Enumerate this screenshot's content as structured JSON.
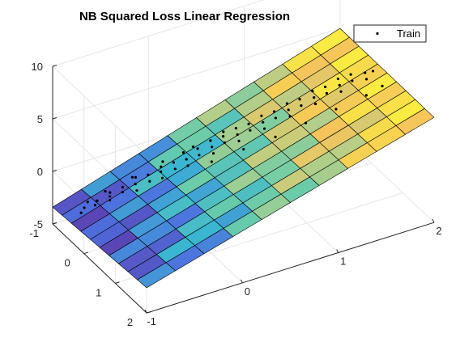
{
  "chart_data": {
    "type": "scatter3d-with-surface",
    "title": "NB Squared Loss Linear Regression",
    "xlabel": "",
    "ylabel": "",
    "zlabel": "",
    "xlim": [
      -1,
      2
    ],
    "ylim": [
      -1,
      2
    ],
    "zlim": [
      -5,
      10
    ],
    "x_ticks": [
      "-1",
      "0",
      "1",
      "2"
    ],
    "y_ticks": [
      "-1",
      "0",
      "1",
      "2"
    ],
    "z_ticks": [
      "-5",
      "0",
      "5",
      "10"
    ],
    "grid": true,
    "legend": {
      "position": "top-right",
      "entries": [
        "Train"
      ]
    },
    "surface": {
      "description": "fitted linear plane",
      "x_range": [
        -1,
        2
      ],
      "y_range": [
        -1,
        2
      ],
      "corner_z": {
        "x-1_y-1": -3.4,
        "x2_y-1": 5.0,
        "x-1_y2": -2.6,
        "x2_y2": 5.0
      },
      "colormap": [
        "#3e26a8",
        "#2f58d9",
        "#19a9c9",
        "#54c49a",
        "#b0c56f",
        "#f4bb3e",
        "#f9e821"
      ]
    },
    "series": [
      {
        "name": "Train",
        "marker": "dot",
        "color": "#000000",
        "points": [
          [
            -0.85,
            -0.55,
            -3.1
          ],
          [
            -0.8,
            -0.6,
            -2.9
          ],
          [
            -0.72,
            -0.5,
            -2.6
          ],
          [
            -0.65,
            -0.65,
            -2.8
          ],
          [
            -0.6,
            -0.4,
            -2.2
          ],
          [
            -0.55,
            -0.55,
            -2.4
          ],
          [
            -0.5,
            -0.7,
            -2.6
          ],
          [
            -0.45,
            -0.45,
            -2.0
          ],
          [
            -0.4,
            -0.6,
            -2.1
          ],
          [
            -0.35,
            -0.3,
            -1.7
          ],
          [
            -0.3,
            -0.5,
            -1.8
          ],
          [
            -0.25,
            -0.75,
            -2.0
          ],
          [
            -0.2,
            -0.35,
            -1.4
          ],
          [
            -0.15,
            -0.55,
            -1.5
          ],
          [
            -0.1,
            -0.25,
            -1.1
          ],
          [
            -0.05,
            -0.45,
            -1.2
          ],
          [
            0.0,
            -0.6,
            -1.3
          ],
          [
            0.05,
            -0.3,
            -0.8
          ],
          [
            0.1,
            -0.5,
            -0.9
          ],
          [
            0.15,
            -0.2,
            -0.5
          ],
          [
            0.2,
            -0.4,
            -0.6
          ],
          [
            0.25,
            -0.65,
            -0.8
          ],
          [
            0.3,
            -0.3,
            -0.2
          ],
          [
            0.35,
            -0.5,
            -0.3
          ],
          [
            0.4,
            -0.15,
            0.1
          ],
          [
            0.45,
            -0.35,
            0.0
          ],
          [
            0.5,
            -0.55,
            -0.1
          ],
          [
            0.55,
            -0.25,
            0.4
          ],
          [
            0.6,
            -0.45,
            0.3
          ],
          [
            0.65,
            -0.1,
            0.7
          ],
          [
            0.7,
            -0.3,
            0.6
          ],
          [
            0.75,
            -0.5,
            0.5
          ],
          [
            0.8,
            -0.2,
            1.0
          ],
          [
            0.85,
            -0.4,
            0.9
          ],
          [
            0.9,
            -0.05,
            1.3
          ],
          [
            0.95,
            -0.25,
            1.2
          ],
          [
            1.0,
            -0.45,
            1.1
          ],
          [
            1.05,
            -0.15,
            1.6
          ],
          [
            1.1,
            -0.35,
            1.5
          ],
          [
            1.15,
            0.0,
            1.9
          ],
          [
            1.2,
            -0.2,
            1.8
          ],
          [
            1.25,
            -0.4,
            1.7
          ],
          [
            1.3,
            -0.1,
            2.2
          ],
          [
            1.35,
            -0.3,
            2.1
          ],
          [
            1.4,
            0.05,
            2.5
          ],
          [
            1.45,
            -0.15,
            2.4
          ],
          [
            1.5,
            -0.35,
            2.3
          ],
          [
            1.55,
            -0.05,
            2.8
          ],
          [
            1.6,
            -0.25,
            2.7
          ],
          [
            1.65,
            0.1,
            3.1
          ],
          [
            1.7,
            -0.1,
            3.0
          ],
          [
            1.75,
            -0.3,
            2.9
          ],
          [
            1.8,
            0.0,
            3.4
          ],
          [
            1.85,
            -0.2,
            3.3
          ],
          [
            1.9,
            0.15,
            3.7
          ],
          [
            1.95,
            -0.05,
            3.6
          ],
          [
            2.0,
            0.05,
            3.9
          ],
          [
            0.3,
            0.1,
            0.3
          ],
          [
            0.6,
            0.2,
            0.9
          ],
          [
            0.9,
            0.3,
            1.5
          ],
          [
            1.2,
            0.35,
            2.1
          ],
          [
            1.5,
            0.4,
            2.7
          ],
          [
            1.8,
            0.45,
            3.3
          ],
          [
            1.95,
            0.5,
            3.9
          ],
          [
            -0.7,
            -0.8,
            -3.2
          ],
          [
            -0.5,
            -0.85,
            -2.9
          ],
          [
            -0.2,
            -0.8,
            -2.3
          ],
          [
            0.1,
            -0.85,
            -1.8
          ],
          [
            0.4,
            -0.8,
            -1.1
          ],
          [
            0.7,
            -0.75,
            -0.4
          ]
        ]
      }
    ]
  }
}
